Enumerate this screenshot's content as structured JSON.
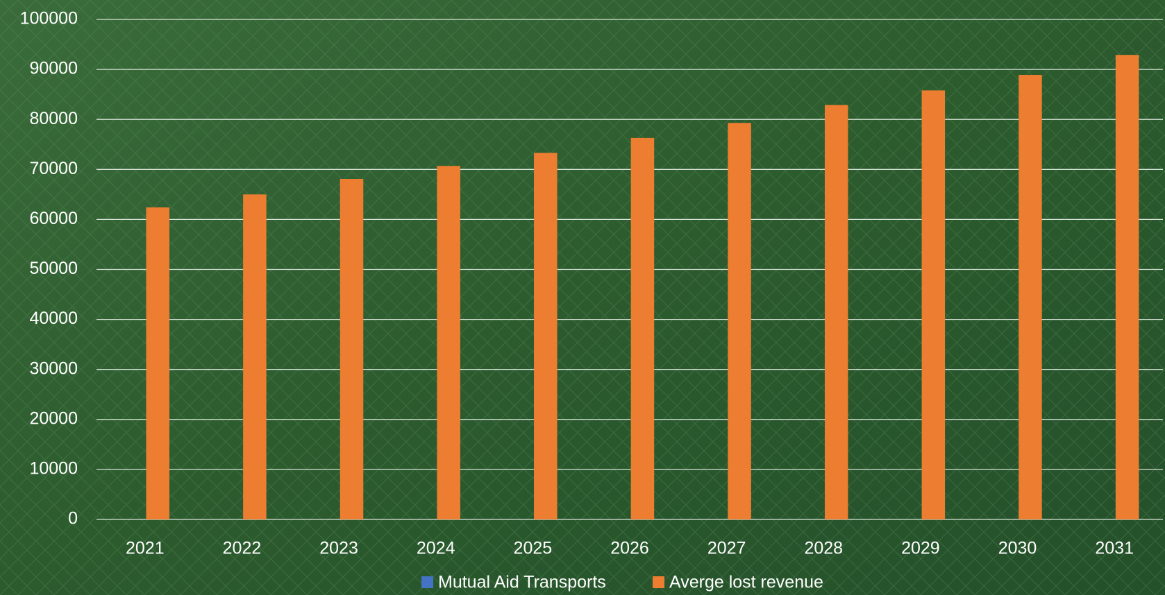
{
  "chart_data": {
    "type": "bar",
    "categories": [
      "2021",
      "2022",
      "2023",
      "2024",
      "2025",
      "2026",
      "2027",
      "2028",
      "2029",
      "2030",
      "2031"
    ],
    "series": [
      {
        "name": "Mutual Aid Transports",
        "color": "#4472c4",
        "values": [
          0,
          0,
          0,
          0,
          0,
          0,
          0,
          0,
          0,
          0,
          0
        ]
      },
      {
        "name": "Averge lost revenue",
        "color": "#ed7d31",
        "values": [
          62400,
          65000,
          68100,
          70700,
          73300,
          76300,
          79300,
          82900,
          85800,
          88900,
          92900
        ]
      }
    ],
    "ylim": [
      0,
      100000
    ],
    "yticks": [
      0,
      10000,
      20000,
      30000,
      40000,
      50000,
      60000,
      70000,
      80000,
      90000,
      100000
    ],
    "grid": true,
    "legend": "bottom"
  }
}
